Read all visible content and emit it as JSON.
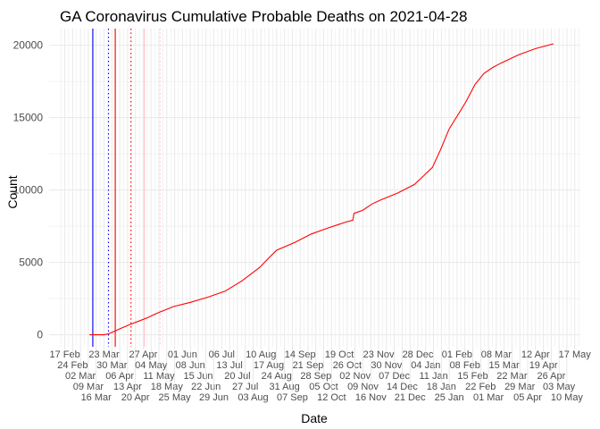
{
  "chart_data": {
    "type": "line",
    "title": "GA Coronavirus Cumulative Probable Deaths on 2021-04-28",
    "xlabel": "Date",
    "ylabel": "Count",
    "xlim": [
      "2020-02-03",
      "2021-05-22"
    ],
    "ylim": [
      -830,
      21150
    ],
    "grid": true,
    "legend": "none",
    "yticks": [
      0,
      5000,
      10000,
      15000,
      20000
    ],
    "ytick_labels": [
      "0",
      "5000",
      "10000",
      "15000",
      "20000"
    ],
    "xtick_start": "2020-02-17",
    "xtick_step_days": 7,
    "xtick_labels": [
      "17 Feb",
      "24 Feb",
      "02 Mar",
      "09 Mar",
      "16 Mar",
      "23 Mar",
      "30 Mar",
      "06 Apr",
      "13 Apr",
      "20 Apr",
      "27 Apr",
      "04 May",
      "11 May",
      "18 May",
      "25 May",
      "01 Jun",
      "08 Jun",
      "15 Jun",
      "22 Jun",
      "29 Jun",
      "06 Jul",
      "13 Jul",
      "20 Jul",
      "27 Jul",
      "03 Aug",
      "10 Aug",
      "17 Aug",
      "24 Aug",
      "31 Aug",
      "07 Sep",
      "14 Sep",
      "21 Sep",
      "28 Sep",
      "05 Oct",
      "12 Oct",
      "19 Oct",
      "26 Oct",
      "02 Nov",
      "09 Nov",
      "16 Nov",
      "23 Nov",
      "30 Nov",
      "07 Dec",
      "14 Dec",
      "21 Dec",
      "28 Dec",
      "04 Jan",
      "11 Jan",
      "18 Jan",
      "25 Jan",
      "01 Feb",
      "08 Feb",
      "15 Feb",
      "22 Feb",
      "01 Mar",
      "08 Mar",
      "15 Mar",
      "22 Mar",
      "29 Mar",
      "05 Apr",
      "12 Apr",
      "19 Apr",
      "26 Apr",
      "03 May",
      "10 May",
      "17 May"
    ],
    "series": [
      {
        "name": "Cumulative Probable Deaths",
        "color": "#ff0000",
        "points": [
          [
            "2020-03-10",
            0
          ],
          [
            "2020-03-23",
            0
          ],
          [
            "2020-03-27",
            60
          ],
          [
            "2020-04-01",
            240
          ],
          [
            "2020-04-08",
            470
          ],
          [
            "2020-04-15",
            710
          ],
          [
            "2020-04-23",
            940
          ],
          [
            "2020-05-01",
            1180
          ],
          [
            "2020-05-09",
            1480
          ],
          [
            "2020-05-24",
            1950
          ],
          [
            "2020-06-08",
            2240
          ],
          [
            "2020-06-24",
            2600
          ],
          [
            "2020-07-09",
            3010
          ],
          [
            "2020-07-24",
            3720
          ],
          [
            "2020-08-09",
            4660
          ],
          [
            "2020-08-17",
            5310
          ],
          [
            "2020-08-24",
            5840
          ],
          [
            "2020-09-09",
            6370
          ],
          [
            "2020-09-24",
            6960
          ],
          [
            "2020-10-09",
            7380
          ],
          [
            "2020-10-25",
            7790
          ],
          [
            "2020-10-31",
            7910
          ],
          [
            "2020-11-01",
            8380
          ],
          [
            "2020-11-09",
            8610
          ],
          [
            "2020-11-17",
            9030
          ],
          [
            "2020-11-25",
            9320
          ],
          [
            "2020-12-10",
            9790
          ],
          [
            "2020-12-25",
            10380
          ],
          [
            "2021-01-02",
            10970
          ],
          [
            "2021-01-10",
            11560
          ],
          [
            "2021-01-17",
            12740
          ],
          [
            "2021-01-25",
            14220
          ],
          [
            "2021-02-02",
            15220
          ],
          [
            "2021-02-09",
            16110
          ],
          [
            "2021-02-17",
            17290
          ],
          [
            "2021-02-25",
            18050
          ],
          [
            "2021-03-05",
            18470
          ],
          [
            "2021-03-12",
            18760
          ],
          [
            "2021-03-28",
            19350
          ],
          [
            "2021-04-12",
            19770
          ],
          [
            "2021-04-28",
            20100
          ]
        ]
      }
    ],
    "vlines": [
      {
        "date": "2020-03-13",
        "color": "#0000ff",
        "dash": "solid"
      },
      {
        "date": "2020-03-27",
        "color": "#0000ff",
        "dash": "dotted"
      },
      {
        "date": "2020-04-02",
        "color": "#ff0000",
        "dash": "solid"
      },
      {
        "date": "2020-04-16",
        "color": "#ff0000",
        "dash": "dotted"
      },
      {
        "date": "2020-04-28",
        "color": "#ffc0cb",
        "dash": "solid"
      },
      {
        "date": "2020-05-12",
        "color": "#ffc0cb",
        "dash": "dotted"
      }
    ]
  }
}
